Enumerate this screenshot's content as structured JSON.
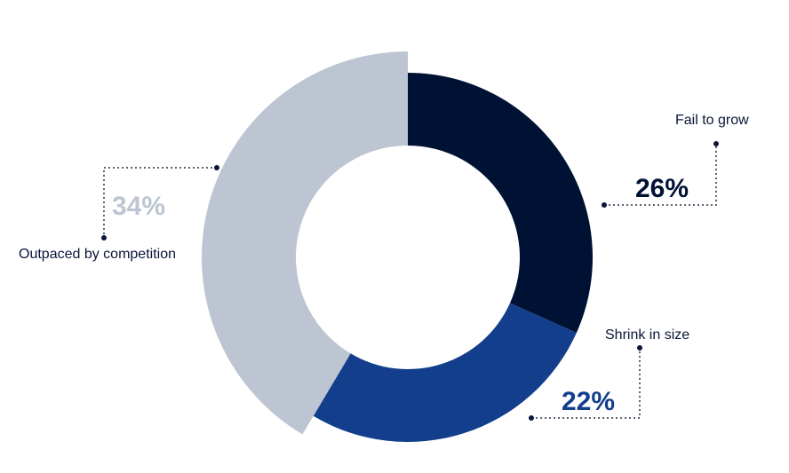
{
  "chart_data": {
    "type": "pie",
    "title": "",
    "categories": [
      "Fail to grow",
      "Shrink in size",
      "Outpaced by competition"
    ],
    "values": [
      26,
      22,
      34
    ],
    "value_labels": [
      "26%",
      "22%",
      "34%"
    ],
    "colors": [
      "#001234",
      "#123e8c",
      "#bcc5d1"
    ],
    "legend": "none"
  }
}
